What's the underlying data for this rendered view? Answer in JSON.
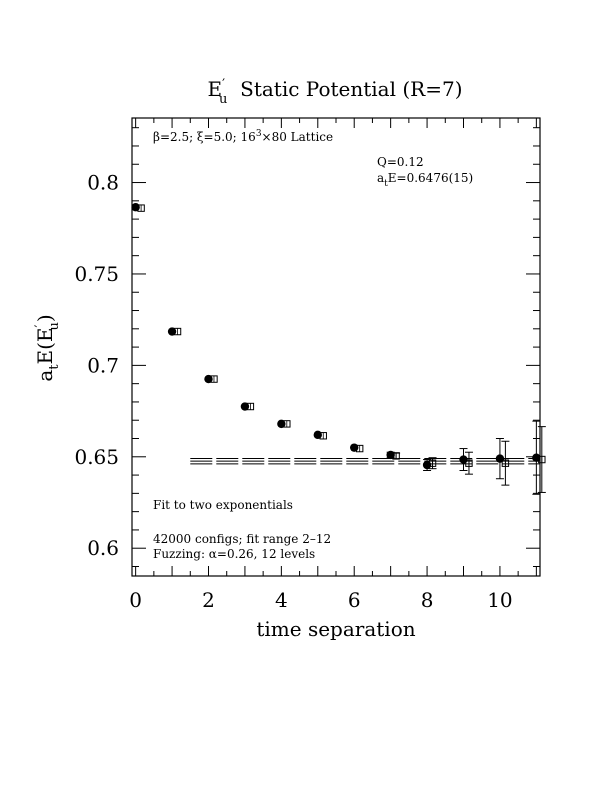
{
  "chart_data": {
    "type": "scatter",
    "title_main": "E",
    "title_sup": "′",
    "title_sub": "u",
    "title_rest": "  Static Potential (R=7)",
    "xlabel": "time separation",
    "ylabel_main": "a",
    "ylabel_sub_t": "t",
    "ylabel_mid": "E(E",
    "ylabel_sup": "′",
    "ylabel_sub_u": "u",
    "ylabel_end": ")",
    "xlim": [
      -0.1,
      11.1
    ],
    "ylim": [
      0.5848,
      0.8353
    ],
    "xticks": [
      0,
      2,
      4,
      6,
      8,
      10
    ],
    "xtick_labels": [
      "0",
      "2",
      "4",
      "6",
      "8",
      "10"
    ],
    "yticks": [
      0.6,
      0.65,
      0.7,
      0.75,
      0.8
    ],
    "ytick_labels": [
      "0.6",
      "0.65",
      "0.7",
      "0.75",
      "0.8"
    ],
    "grid": false,
    "series": [
      {
        "marker": "filled-circle",
        "points": [
          {
            "x": 0,
            "y": 0.7865,
            "err": 0.0005
          },
          {
            "x": 1,
            "y": 0.7185,
            "err": 0.0008
          },
          {
            "x": 2,
            "y": 0.6925,
            "err": 0.0008
          },
          {
            "x": 3,
            "y": 0.6775,
            "err": 0.001
          },
          {
            "x": 4,
            "y": 0.668,
            "err": 0.001
          },
          {
            "x": 5,
            "y": 0.662,
            "err": 0.001
          },
          {
            "x": 6,
            "y": 0.655,
            "err": 0.001
          },
          {
            "x": 7,
            "y": 0.651,
            "err": 0.0015
          },
          {
            "x": 8,
            "y": 0.6455,
            "err": 0.003
          },
          {
            "x": 9,
            "y": 0.6485,
            "err": 0.006
          },
          {
            "x": 10,
            "y": 0.649,
            "err": 0.011
          },
          {
            "x": 11,
            "y": 0.6495,
            "err": 0.02
          }
        ]
      },
      {
        "marker": "open-square",
        "points": [
          {
            "x": 0.15,
            "y": 0.786,
            "err": 0.0008
          },
          {
            "x": 1.15,
            "y": 0.7185,
            "err": 0.0008
          },
          {
            "x": 2.15,
            "y": 0.6925,
            "err": 0.0008
          },
          {
            "x": 3.15,
            "y": 0.6775,
            "err": 0.001
          },
          {
            "x": 4.15,
            "y": 0.668,
            "err": 0.001
          },
          {
            "x": 5.15,
            "y": 0.6615,
            "err": 0.001
          },
          {
            "x": 6.15,
            "y": 0.6545,
            "err": 0.0012
          },
          {
            "x": 7.15,
            "y": 0.6505,
            "err": 0.0015
          },
          {
            "x": 8.15,
            "y": 0.6465,
            "err": 0.003
          },
          {
            "x": 9.15,
            "y": 0.6465,
            "err": 0.006
          },
          {
            "x": 10.15,
            "y": 0.6465,
            "err": 0.012
          },
          {
            "x": 11.15,
            "y": 0.6485,
            "err": 0.018
          }
        ]
      }
    ],
    "fit": {
      "x_range": [
        1.5,
        11.1
      ],
      "center": 0.6476,
      "err": 0.0015
    },
    "annotations": {
      "lattice_prefix": "β=2.5; ξ=5.0; 16",
      "lattice_sup": "3",
      "lattice_suffix": "×80 Lattice",
      "q_value": "Q=0.12",
      "ate_a": "a",
      "ate_t": "t",
      "ate_value": "E=0.6476(15)",
      "fit_text": "Fit to two exponentials",
      "configs_text": "42000 configs; fit range 2–12",
      "fuzzing_text": "Fuzzing: α=0.26, 12 levels"
    }
  }
}
